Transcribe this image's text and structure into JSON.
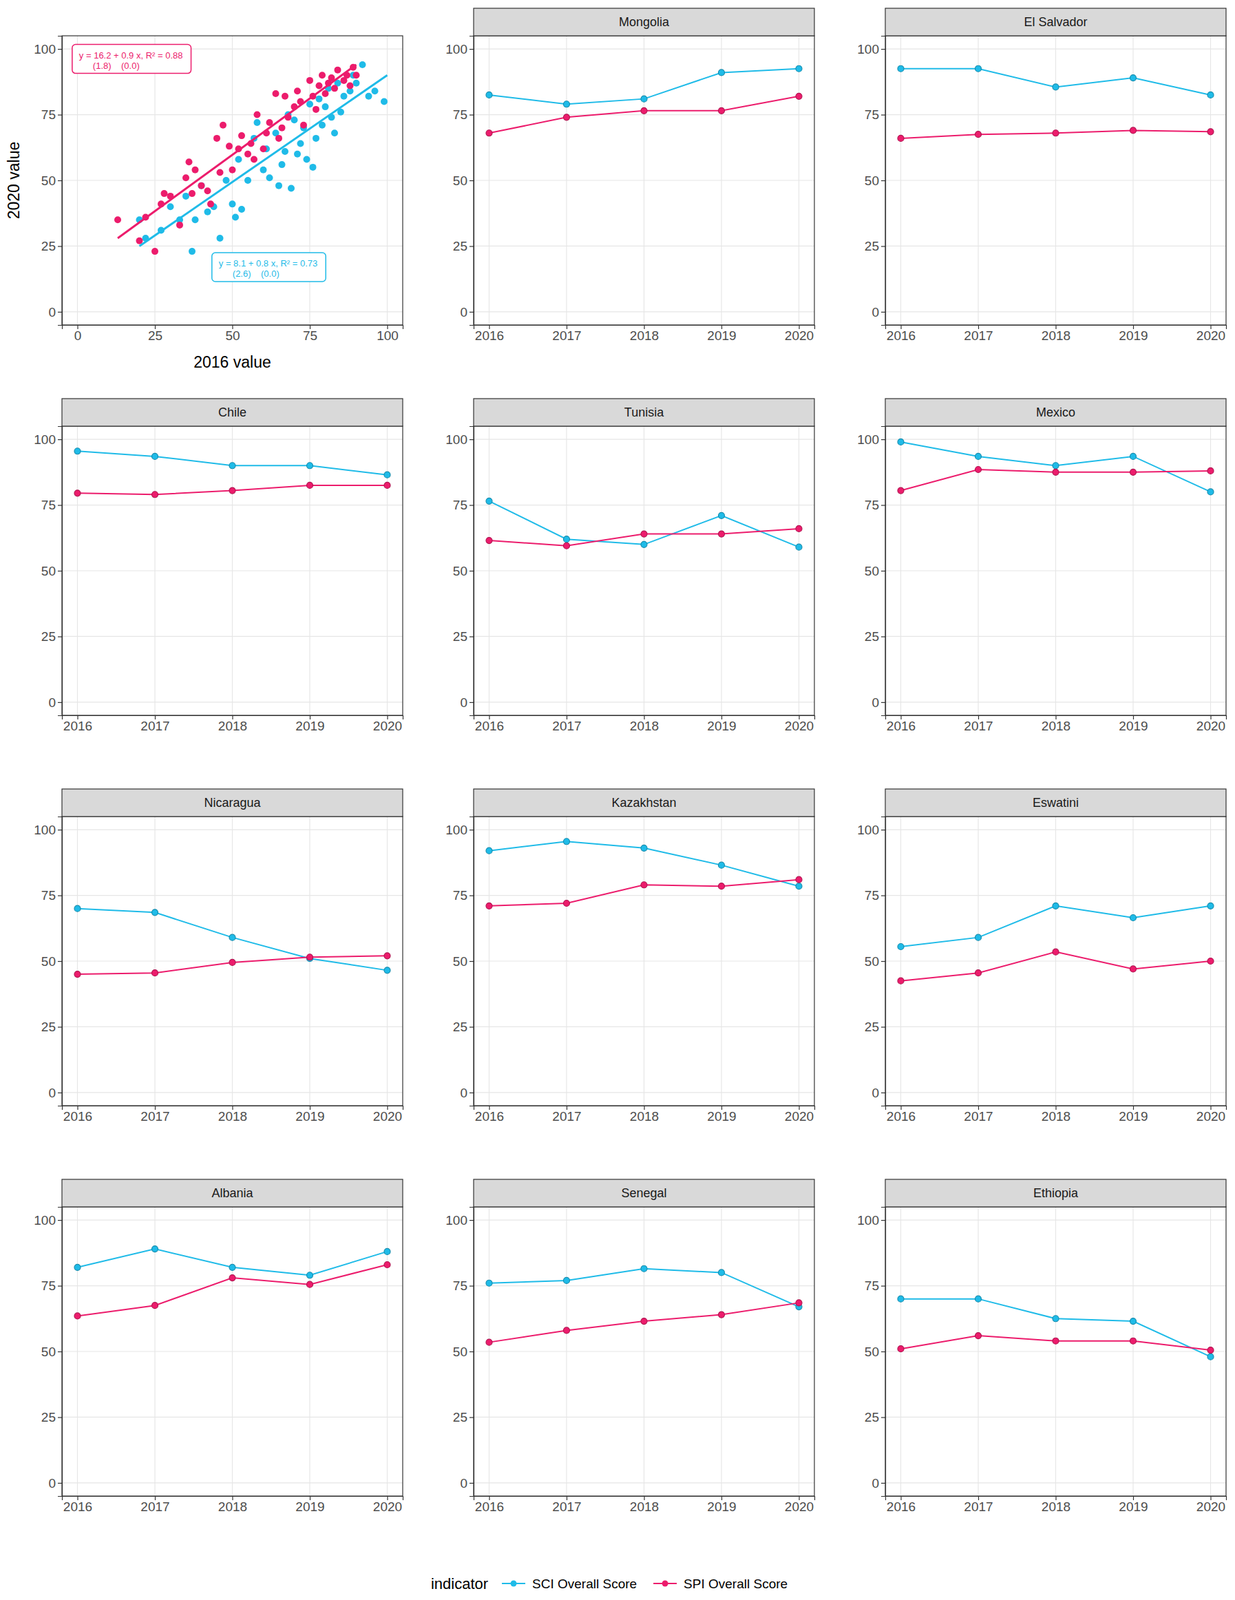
{
  "legend_title": "indicator",
  "chart_data": [
    {
      "type": "scatter",
      "x_label": "2016 value",
      "y_label": "2020 value",
      "xlim": [
        -5,
        105
      ],
      "xticks": [
        0,
        25,
        50,
        75,
        100
      ],
      "ylim": [
        -5,
        105
      ],
      "yticks": [
        0,
        25,
        50,
        75,
        100
      ],
      "grid": true,
      "legend": "bottom",
      "series": [
        {
          "name": "SCI Overall Score",
          "color": "#1fbbe8",
          "x": [
            20,
            22,
            27,
            30,
            33,
            35,
            37,
            38,
            40,
            42,
            44,
            46,
            48,
            50,
            51,
            52,
            53,
            55,
            57,
            58,
            60,
            61,
            62,
            64,
            65,
            66,
            67,
            68,
            69,
            70,
            71,
            72,
            73,
            74,
            75,
            76,
            77,
            78,
            79,
            80,
            81,
            82,
            83,
            84,
            85,
            86,
            88,
            89,
            90,
            92,
            94,
            96,
            99
          ],
          "values": [
            35,
            28,
            31,
            40,
            35,
            44,
            23,
            35,
            48,
            38,
            40,
            28,
            50,
            41,
            36,
            58,
            39,
            50,
            66,
            72,
            54,
            62,
            51,
            68,
            48,
            56,
            61,
            75,
            47,
            73,
            60,
            64,
            70,
            58,
            79,
            55,
            66,
            81,
            71,
            78,
            85,
            74,
            68,
            87,
            76,
            82,
            84,
            90,
            87,
            94,
            82,
            84,
            80
          ],
          "fit": {
            "x": [
              20,
              100
            ],
            "values": [
              25,
              90
            ]
          },
          "annotation": [
            "y = 8.1 + 0.8 x, R² = 0.73",
            "(2.6)    (0.0)"
          ]
        },
        {
          "name": "SPI Overall Score",
          "color": "#ec1c6c",
          "x": [
            13,
            20,
            22,
            25,
            27,
            28,
            30,
            33,
            35,
            36,
            37,
            38,
            40,
            42,
            43,
            45,
            46,
            47,
            49,
            50,
            52,
            53,
            55,
            56,
            57,
            58,
            60,
            61,
            62,
            64,
            65,
            66,
            67,
            68,
            70,
            71,
            72,
            73,
            75,
            76,
            77,
            78,
            79,
            80,
            81,
            82,
            83,
            84,
            86,
            87,
            88,
            89,
            90
          ],
          "values": [
            35,
            27,
            36,
            23,
            41,
            45,
            44,
            33,
            51,
            57,
            45,
            54,
            48,
            46,
            41,
            66,
            53,
            71,
            63,
            54,
            62,
            67,
            60,
            64,
            58,
            75,
            62,
            68,
            72,
            83,
            66,
            70,
            82,
            74,
            78,
            84,
            80,
            71,
            88,
            82,
            77,
            86,
            90,
            83,
            87,
            89,
            85,
            92,
            88,
            90,
            86,
            93,
            90
          ],
          "fit": {
            "x": [
              13,
              90
            ],
            "values": [
              28,
              94
            ]
          },
          "annotation": [
            "y = 16.2 + 0.9 x, R² = 0.88",
            "(1.8)    (0.0)"
          ]
        }
      ]
    },
    {
      "type": "line",
      "title": "Mongolia",
      "marker": "circle",
      "grid": true,
      "x": [
        2016,
        2017,
        2018,
        2019,
        2020
      ],
      "xlim": [
        2015.8,
        2020.2
      ],
      "xticks": [
        2016,
        2017,
        2018,
        2019,
        2020
      ],
      "ylim": [
        -5,
        105
      ],
      "yticks": [
        0,
        25,
        50,
        75,
        100
      ],
      "series": [
        {
          "name": "SCI Overall Score",
          "color": "#1fbbe8",
          "values": [
            82.5,
            79,
            81,
            91,
            92.5
          ]
        },
        {
          "name": "SPI Overall Score",
          "color": "#ec1c6c",
          "values": [
            68,
            74,
            76.5,
            76.5,
            82
          ]
        }
      ]
    },
    {
      "type": "line",
      "title": "El Salvador",
      "marker": "circle",
      "grid": true,
      "x": [
        2016,
        2017,
        2018,
        2019,
        2020
      ],
      "xlim": [
        2015.8,
        2020.2
      ],
      "xticks": [
        2016,
        2017,
        2018,
        2019,
        2020
      ],
      "ylim": [
        -5,
        105
      ],
      "yticks": [
        0,
        25,
        50,
        75,
        100
      ],
      "series": [
        {
          "name": "SCI Overall Score",
          "color": "#1fbbe8",
          "values": [
            92.5,
            92.5,
            85.5,
            89,
            82.5
          ]
        },
        {
          "name": "SPI Overall Score",
          "color": "#ec1c6c",
          "values": [
            66,
            67.5,
            68,
            69,
            68.5
          ]
        }
      ]
    },
    {
      "type": "line",
      "title": "Chile",
      "marker": "circle",
      "grid": true,
      "x": [
        2016,
        2017,
        2018,
        2019,
        2020
      ],
      "xlim": [
        2015.8,
        2020.2
      ],
      "xticks": [
        2016,
        2017,
        2018,
        2019,
        2020
      ],
      "ylim": [
        -5,
        105
      ],
      "yticks": [
        0,
        25,
        50,
        75,
        100
      ],
      "series": [
        {
          "name": "SCI Overall Score",
          "color": "#1fbbe8",
          "values": [
            95.5,
            93.5,
            90,
            90,
            86.5
          ]
        },
        {
          "name": "SPI Overall Score",
          "color": "#ec1c6c",
          "values": [
            79.5,
            79,
            80.5,
            82.5,
            82.5
          ]
        }
      ]
    },
    {
      "type": "line",
      "title": "Tunisia",
      "marker": "circle",
      "grid": true,
      "x": [
        2016,
        2017,
        2018,
        2019,
        2020
      ],
      "xlim": [
        2015.8,
        2020.2
      ],
      "xticks": [
        2016,
        2017,
        2018,
        2019,
        2020
      ],
      "ylim": [
        -5,
        105
      ],
      "yticks": [
        0,
        25,
        50,
        75,
        100
      ],
      "series": [
        {
          "name": "SCI Overall Score",
          "color": "#1fbbe8",
          "values": [
            76.5,
            62,
            60,
            71,
            59
          ]
        },
        {
          "name": "SPI Overall Score",
          "color": "#ec1c6c",
          "values": [
            61.5,
            59.5,
            64,
            64,
            66
          ]
        }
      ]
    },
    {
      "type": "line",
      "title": "Mexico",
      "marker": "circle",
      "grid": true,
      "x": [
        2016,
        2017,
        2018,
        2019,
        2020
      ],
      "xlim": [
        2015.8,
        2020.2
      ],
      "xticks": [
        2016,
        2017,
        2018,
        2019,
        2020
      ],
      "ylim": [
        -5,
        105
      ],
      "yticks": [
        0,
        25,
        50,
        75,
        100
      ],
      "series": [
        {
          "name": "SCI Overall Score",
          "color": "#1fbbe8",
          "values": [
            99,
            93.5,
            90,
            93.5,
            80
          ]
        },
        {
          "name": "SPI Overall Score",
          "color": "#ec1c6c",
          "values": [
            80.5,
            88.5,
            87.5,
            87.5,
            88
          ]
        }
      ]
    },
    {
      "type": "line",
      "title": "Nicaragua",
      "marker": "circle",
      "grid": true,
      "x": [
        2016,
        2017,
        2018,
        2019,
        2020
      ],
      "xlim": [
        2015.8,
        2020.2
      ],
      "xticks": [
        2016,
        2017,
        2018,
        2019,
        2020
      ],
      "ylim": [
        -5,
        105
      ],
      "yticks": [
        0,
        25,
        50,
        75,
        100
      ],
      "series": [
        {
          "name": "SCI Overall Score",
          "color": "#1fbbe8",
          "values": [
            70,
            68.5,
            59,
            51,
            46.5
          ]
        },
        {
          "name": "SPI Overall Score",
          "color": "#ec1c6c",
          "values": [
            45,
            45.5,
            49.5,
            51.5,
            52
          ]
        }
      ]
    },
    {
      "type": "line",
      "title": "Kazakhstan",
      "marker": "circle",
      "grid": true,
      "x": [
        2016,
        2017,
        2018,
        2019,
        2020
      ],
      "xlim": [
        2015.8,
        2020.2
      ],
      "xticks": [
        2016,
        2017,
        2018,
        2019,
        2020
      ],
      "ylim": [
        -5,
        105
      ],
      "yticks": [
        0,
        25,
        50,
        75,
        100
      ],
      "series": [
        {
          "name": "SCI Overall Score",
          "color": "#1fbbe8",
          "values": [
            92,
            95.5,
            93,
            86.5,
            78.5
          ]
        },
        {
          "name": "SPI Overall Score",
          "color": "#ec1c6c",
          "values": [
            71,
            72,
            79,
            78.5,
            81
          ]
        }
      ]
    },
    {
      "type": "line",
      "title": "Eswatini",
      "marker": "circle",
      "grid": true,
      "x": [
        2016,
        2017,
        2018,
        2019,
        2020
      ],
      "xlim": [
        2015.8,
        2020.2
      ],
      "xticks": [
        2016,
        2017,
        2018,
        2019,
        2020
      ],
      "ylim": [
        -5,
        105
      ],
      "yticks": [
        0,
        25,
        50,
        75,
        100
      ],
      "series": [
        {
          "name": "SCI Overall Score",
          "color": "#1fbbe8",
          "values": [
            55.5,
            59,
            71,
            66.5,
            71
          ]
        },
        {
          "name": "SPI Overall Score",
          "color": "#ec1c6c",
          "values": [
            42.5,
            45.5,
            53.5,
            47,
            50
          ]
        }
      ]
    },
    {
      "type": "line",
      "title": "Albania",
      "marker": "circle",
      "grid": true,
      "x": [
        2016,
        2017,
        2018,
        2019,
        2020
      ],
      "xlim": [
        2015.8,
        2020.2
      ],
      "xticks": [
        2016,
        2017,
        2018,
        2019,
        2020
      ],
      "ylim": [
        -5,
        105
      ],
      "yticks": [
        0,
        25,
        50,
        75,
        100
      ],
      "series": [
        {
          "name": "SCI Overall Score",
          "color": "#1fbbe8",
          "values": [
            82,
            89,
            82,
            79,
            88
          ]
        },
        {
          "name": "SPI Overall Score",
          "color": "#ec1c6c",
          "values": [
            63.5,
            67.5,
            78,
            75.5,
            83
          ]
        }
      ]
    },
    {
      "type": "line",
      "title": "Senegal",
      "marker": "circle",
      "grid": true,
      "x": [
        2016,
        2017,
        2018,
        2019,
        2020
      ],
      "xlim": [
        2015.8,
        2020.2
      ],
      "xticks": [
        2016,
        2017,
        2018,
        2019,
        2020
      ],
      "ylim": [
        -5,
        105
      ],
      "yticks": [
        0,
        25,
        50,
        75,
        100
      ],
      "series": [
        {
          "name": "SCI Overall Score",
          "color": "#1fbbe8",
          "values": [
            76,
            77,
            81.5,
            80,
            67
          ]
        },
        {
          "name": "SPI Overall Score",
          "color": "#ec1c6c",
          "values": [
            53.5,
            58,
            61.5,
            64,
            68.5
          ]
        }
      ]
    },
    {
      "type": "line",
      "title": "Ethiopia",
      "marker": "circle",
      "grid": true,
      "x": [
        2016,
        2017,
        2018,
        2019,
        2020
      ],
      "xlim": [
        2015.8,
        2020.2
      ],
      "xticks": [
        2016,
        2017,
        2018,
        2019,
        2020
      ],
      "ylim": [
        -5,
        105
      ],
      "yticks": [
        0,
        25,
        50,
        75,
        100
      ],
      "series": [
        {
          "name": "SCI Overall Score",
          "color": "#1fbbe8",
          "values": [
            70,
            70,
            62.5,
            61.5,
            48
          ]
        },
        {
          "name": "SPI Overall Score",
          "color": "#ec1c6c",
          "values": [
            51,
            56,
            54,
            54,
            50.5
          ]
        }
      ]
    }
  ]
}
